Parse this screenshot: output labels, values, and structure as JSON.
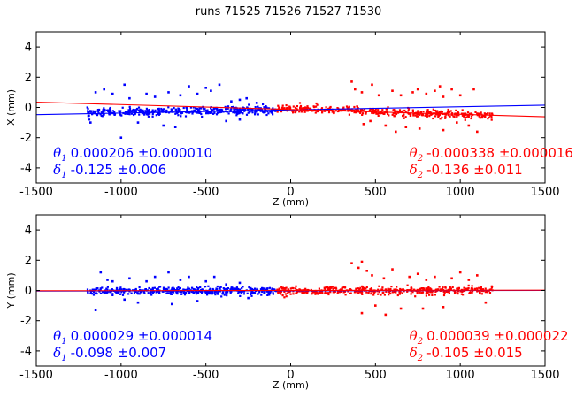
{
  "title": "runs 71525 71526 71527 71530",
  "colors": {
    "blue": "#0000ff",
    "red": "#ff0000",
    "axis": "#000000"
  },
  "chart_data": [
    {
      "type": "scatter",
      "xlabel": "Z (mm)",
      "ylabel": "X (mm)",
      "xlim": [
        -1500,
        1500
      ],
      "ylim": [
        -5,
        5
      ],
      "xticks": [
        "-1500",
        "-1000",
        "-500",
        "0",
        "500",
        "1000",
        "1500"
      ],
      "xtick_values": [
        -1500,
        -1000,
        -500,
        0,
        500,
        1000,
        1500
      ],
      "yticks": [
        "-4",
        "-2",
        "0",
        "2",
        "4"
      ],
      "ytick_values": [
        -4,
        -2,
        0,
        2,
        4
      ],
      "series": [
        {
          "color": "blue",
          "range": [
            -1200,
            -80
          ],
          "center": [
            [
              -1200,
              -0.35
            ],
            [
              -80,
              -0.15
            ]
          ],
          "outliers": [
            [
              -1150,
              1.0
            ],
            [
              -1100,
              1.2
            ],
            [
              -1050,
              0.9
            ],
            [
              -980,
              1.5
            ],
            [
              -950,
              0.6
            ],
            [
              -900,
              -1.0
            ],
            [
              -850,
              0.9
            ],
            [
              -800,
              0.7
            ],
            [
              -720,
              1.0
            ],
            [
              -650,
              0.8
            ],
            [
              -600,
              1.4
            ],
            [
              -550,
              0.9
            ],
            [
              -500,
              1.3
            ],
            [
              -470,
              1.1
            ],
            [
              -420,
              1.5
            ],
            [
              -380,
              -0.9
            ],
            [
              -350,
              0.4
            ],
            [
              -300,
              0.5
            ],
            [
              -260,
              0.6
            ],
            [
              -1180,
              -1.0
            ],
            [
              -1000,
              -2.0
            ],
            [
              -750,
              -1.2
            ],
            [
              -680,
              -1.3
            ],
            [
              -300,
              -0.8
            ],
            [
              -200,
              0.3
            ]
          ],
          "fit": {
            "x": [
              -1500,
              1500
            ],
            "y": [
              -0.48,
              0.15
            ]
          }
        },
        {
          "color": "red",
          "range": [
            -80,
            1190
          ],
          "center": [
            [
              -80,
              -0.05
            ],
            [
              1190,
              -0.55
            ]
          ],
          "outliers": [
            [
              360,
              1.7
            ],
            [
              380,
              1.2
            ],
            [
              420,
              1.0
            ],
            [
              480,
              1.5
            ],
            [
              520,
              0.8
            ],
            [
              600,
              1.1
            ],
            [
              650,
              0.8
            ],
            [
              680,
              -1.3
            ],
            [
              720,
              1.0
            ],
            [
              750,
              1.2
            ],
            [
              800,
              0.9
            ],
            [
              850,
              1.1
            ],
            [
              880,
              1.4
            ],
            [
              900,
              0.7
            ],
            [
              950,
              1.2
            ],
            [
              1000,
              0.8
            ],
            [
              1080,
              1.2
            ],
            [
              430,
              -1.1
            ],
            [
              560,
              -1.2
            ],
            [
              620,
              -1.6
            ],
            [
              760,
              -1.4
            ],
            [
              900,
              -1.5
            ],
            [
              1050,
              -1.2
            ],
            [
              1100,
              -1.6
            ],
            [
              470,
              -0.9
            ],
            [
              980,
              -1.0
            ]
          ],
          "fit": {
            "x": [
              -1500,
              1500
            ],
            "y": [
              0.35,
              -0.62
            ]
          }
        }
      ],
      "annotations": {
        "left": {
          "sym1": "θ",
          "sub1": "1",
          "text1": "0.000206 ±0.000010",
          "sym2": "δ",
          "sub2": "1",
          "text2": "-0.125 ±0.006"
        },
        "right": {
          "sym1": "θ",
          "sub1": "2",
          "text1": "-0.000338 ±0.000016",
          "sym2": "δ",
          "sub2": "2",
          "text2": "-0.136 ±0.011"
        }
      }
    },
    {
      "type": "scatter",
      "xlabel": "Z (mm)",
      "ylabel": "Y (mm)",
      "xlim": [
        -1500,
        1500
      ],
      "ylim": [
        -5,
        5
      ],
      "xticks": [
        "-1500",
        "-1000",
        "-500",
        "0",
        "500",
        "1000",
        "1500"
      ],
      "xtick_values": [
        -1500,
        -1000,
        -500,
        0,
        500,
        1000,
        1500
      ],
      "yticks": [
        "-4",
        "-2",
        "0",
        "2",
        "4"
      ],
      "ytick_values": [
        -4,
        -2,
        0,
        2,
        4
      ],
      "series": [
        {
          "color": "blue",
          "range": [
            -1200,
            -80
          ],
          "center": [
            [
              -1200,
              -0.05
            ],
            [
              -80,
              -0.02
            ]
          ],
          "outliers": [
            [
              -1120,
              1.2
            ],
            [
              -1080,
              0.7
            ],
            [
              -1050,
              0.6
            ],
            [
              -980,
              -0.6
            ],
            [
              -950,
              0.8
            ],
            [
              -900,
              -0.8
            ],
            [
              -850,
              0.6
            ],
            [
              -800,
              0.9
            ],
            [
              -720,
              1.2
            ],
            [
              -650,
              0.7
            ],
            [
              -600,
              0.9
            ],
            [
              -550,
              -0.7
            ],
            [
              -500,
              0.6
            ],
            [
              -450,
              0.9
            ],
            [
              -380,
              0.4
            ],
            [
              -300,
              0.5
            ],
            [
              -1150,
              -1.3
            ],
            [
              -700,
              -0.9
            ],
            [
              -250,
              -0.5
            ]
          ],
          "fit": {
            "x": [
              -1500,
              1500
            ],
            "y": [
              -0.04,
              0.0
            ]
          }
        },
        {
          "color": "red",
          "range": [
            -80,
            1190
          ],
          "center": [
            [
              -80,
              -0.02
            ],
            [
              1190,
              0.0
            ]
          ],
          "outliers": [
            [
              360,
              1.8
            ],
            [
              400,
              1.5
            ],
            [
              420,
              1.9
            ],
            [
              450,
              1.3
            ],
            [
              480,
              1.0
            ],
            [
              500,
              -1.0
            ],
            [
              550,
              0.8
            ],
            [
              600,
              1.4
            ],
            [
              650,
              -1.2
            ],
            [
              700,
              0.9
            ],
            [
              750,
              1.1
            ],
            [
              800,
              0.7
            ],
            [
              850,
              0.9
            ],
            [
              900,
              -1.1
            ],
            [
              950,
              0.8
            ],
            [
              1000,
              1.2
            ],
            [
              1050,
              0.7
            ],
            [
              1100,
              1.0
            ],
            [
              420,
              -1.5
            ],
            [
              560,
              -1.6
            ],
            [
              780,
              -1.2
            ],
            [
              1150,
              -0.8
            ]
          ],
          "fit": {
            "x": [
              -1500,
              1500
            ],
            "y": [
              -0.02,
              0.02
            ]
          }
        }
      ],
      "annotations": {
        "left": {
          "sym1": "θ",
          "sub1": "1",
          "text1": "0.000029 ±0.000014",
          "sym2": "δ",
          "sub2": "1",
          "text2": "-0.098 ±0.007"
        },
        "right": {
          "sym1": "θ",
          "sub1": "2",
          "text1": "0.000039 ±0.000022",
          "sym2": "δ",
          "sub2": "2",
          "text2": "-0.105 ±0.015"
        }
      }
    }
  ]
}
